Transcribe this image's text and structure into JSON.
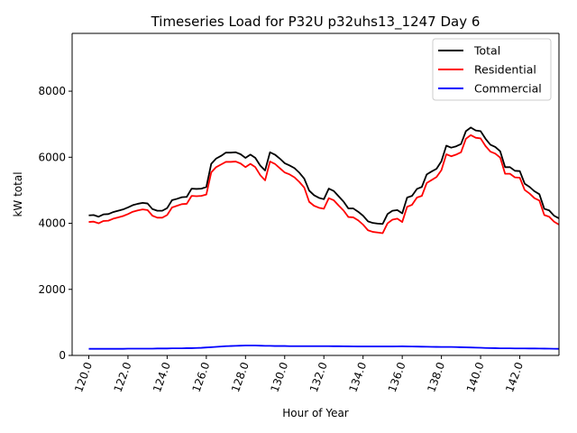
{
  "chart_data": {
    "type": "line",
    "title": "Timeseries Load for P32U p32uhs13_1247  Day 6",
    "xlabel": "Hour of Year",
    "ylabel": "kW total",
    "xlim": [
      119.15,
      144.0
    ],
    "ylim": [
      0,
      9750
    ],
    "x_ticks": [
      120,
      122,
      124,
      126,
      128,
      130,
      132,
      134,
      136,
      138,
      140,
      142
    ],
    "x_tick_labels": [
      "120.0",
      "122.0",
      "124.0",
      "126.0",
      "128.0",
      "130.0",
      "132.0",
      "134.0",
      "136.0",
      "138.0",
      "140.0",
      "142.0"
    ],
    "y_ticks": [
      0,
      2000,
      4000,
      6000,
      8000
    ],
    "y_tick_labels": [
      "0",
      "2000",
      "4000",
      "6000",
      "8000"
    ],
    "grid": false,
    "legend_position": "top-right",
    "x_start": 120.0,
    "x_step": 0.25,
    "series": [
      {
        "name": "Total",
        "color": "#000000",
        "values": [
          4240,
          4250,
          4200,
          4270,
          4280,
          4340,
          4380,
          4420,
          4480,
          4550,
          4590,
          4620,
          4600,
          4430,
          4380,
          4380,
          4460,
          4700,
          4740,
          4790,
          4800,
          5050,
          5040,
          5050,
          5100,
          5800,
          5960,
          6040,
          6140,
          6140,
          6150,
          6090,
          5980,
          6080,
          5980,
          5750,
          5600,
          6150,
          6080,
          5960,
          5820,
          5750,
          5670,
          5530,
          5350,
          4990,
          4850,
          4770,
          4730,
          5050,
          4980,
          4820,
          4660,
          4450,
          4450,
          4350,
          4230,
          4060,
          4010,
          3990,
          3980,
          4280,
          4380,
          4400,
          4300,
          4780,
          4830,
          5040,
          5100,
          5480,
          5570,
          5650,
          5880,
          6350,
          6290,
          6330,
          6400,
          6790,
          6900,
          6810,
          6790,
          6560,
          6380,
          6310,
          6180,
          5700,
          5700,
          5590,
          5580,
          5200,
          5100,
          4970,
          4880,
          4440,
          4390,
          4230,
          4150
        ]
      },
      {
        "name": "Residential",
        "color": "#ff0000",
        "values": [
          4040,
          4050,
          4000,
          4070,
          4080,
          4140,
          4180,
          4220,
          4280,
          4350,
          4390,
          4420,
          4400,
          4230,
          4170,
          4170,
          4250,
          4480,
          4530,
          4580,
          4590,
          4830,
          4820,
          4830,
          4870,
          5540,
          5700,
          5780,
          5860,
          5860,
          5870,
          5810,
          5700,
          5800,
          5700,
          5460,
          5300,
          5870,
          5800,
          5670,
          5540,
          5480,
          5390,
          5250,
          5080,
          4650,
          4530,
          4470,
          4440,
          4760,
          4700,
          4540,
          4390,
          4190,
          4180,
          4090,
          3960,
          3790,
          3740,
          3720,
          3700,
          4000,
          4110,
          4140,
          4040,
          4500,
          4560,
          4780,
          4830,
          5220,
          5310,
          5400,
          5610,
          6090,
          6030,
          6080,
          6150,
          6560,
          6670,
          6590,
          6570,
          6340,
          6170,
          6110,
          5990,
          5500,
          5500,
          5390,
          5380,
          5010,
          4900,
          4760,
          4690,
          4250,
          4200,
          4050,
          3960
        ]
      },
      {
        "name": "Commercial",
        "color": "#0000ff",
        "values": [
          200,
          200,
          200,
          200,
          200,
          200,
          200,
          200,
          205,
          205,
          205,
          205,
          205,
          205,
          210,
          210,
          210,
          215,
          215,
          215,
          220,
          220,
          225,
          230,
          240,
          250,
          260,
          270,
          280,
          285,
          290,
          295,
          300,
          300,
          300,
          295,
          290,
          290,
          285,
          285,
          285,
          280,
          280,
          280,
          280,
          280,
          280,
          280,
          280,
          280,
          278,
          278,
          276,
          275,
          274,
          272,
          272,
          272,
          272,
          272,
          272,
          272,
          272,
          274,
          275,
          272,
          270,
          268,
          265,
          262,
          260,
          258,
          255,
          255,
          255,
          252,
          248,
          244,
          240,
          236,
          232,
          226,
          222,
          220,
          216,
          214,
          214,
          212,
          212,
          212,
          210,
          210,
          208,
          206,
          204,
          202,
          200
        ]
      }
    ]
  }
}
